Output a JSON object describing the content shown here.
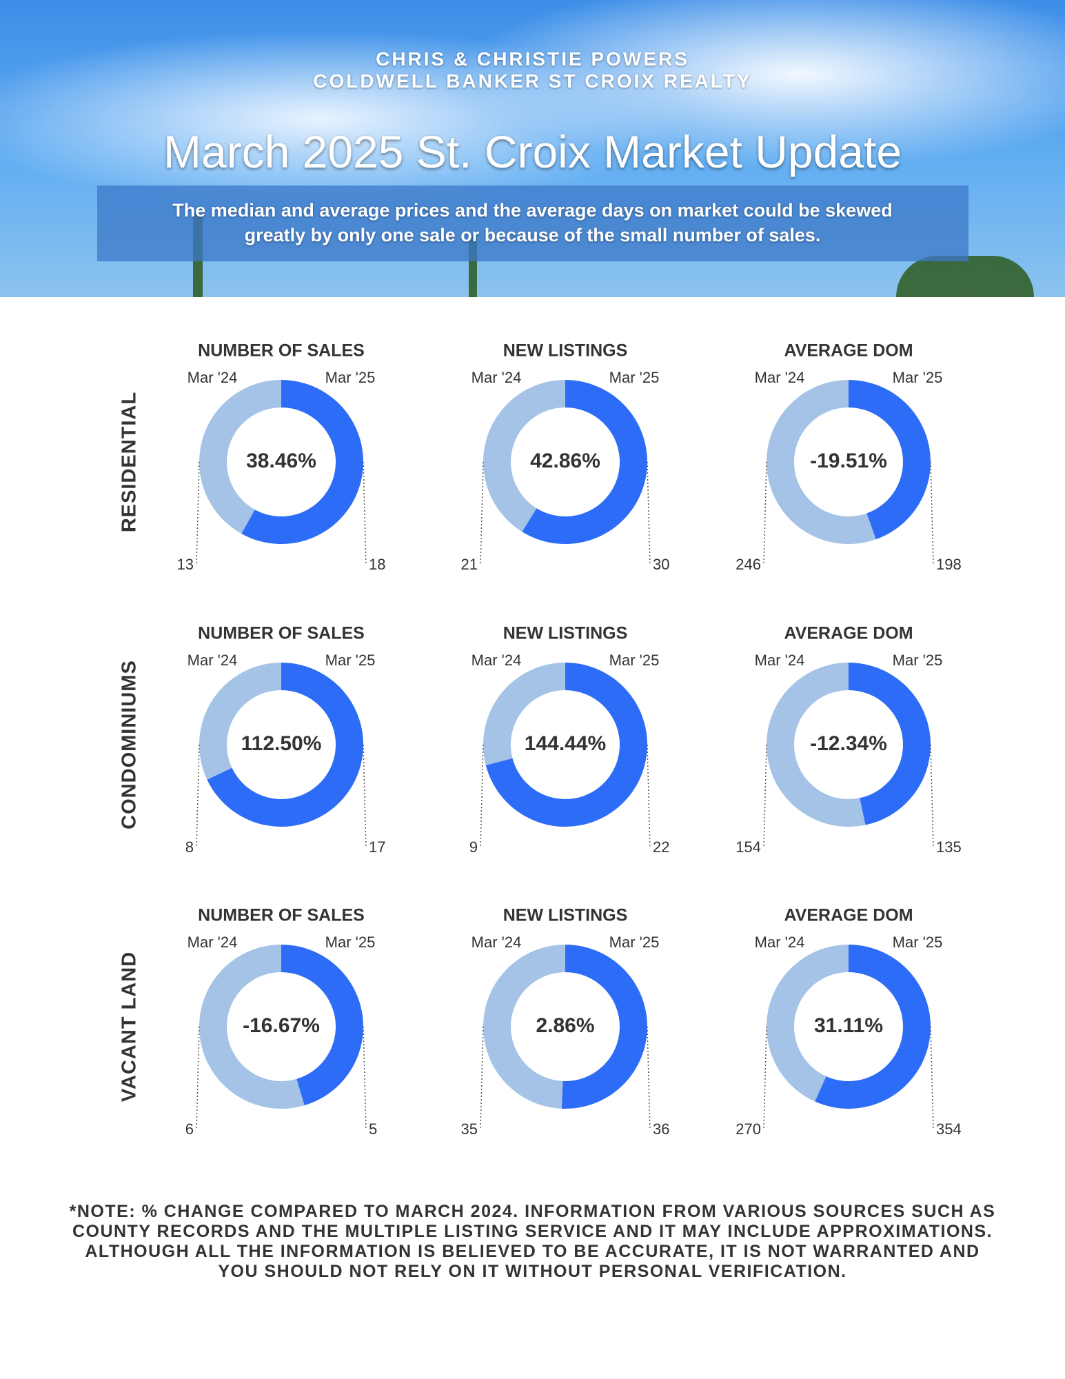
{
  "header": {
    "agents": "CHRIS & CHRISTIE POWERS",
    "brokerage": "COLDWELL BANKER ST CROIX REALTY",
    "title": "March 2025 St. Croix Market Update",
    "subtitle": "The median and average prices and  the average days on market could be skewed greatly by only one sale or because of the small number of sales."
  },
  "sections": [
    "RESIDENTIAL",
    "CONDOMINIUMS",
    "VACANT LAND"
  ],
  "chart_data": [
    {
      "type": "donut",
      "title": "NUMBER OF SALES",
      "categories": [
        "Mar '24",
        "Mar '25"
      ],
      "values": [
        13,
        18
      ],
      "center_label": "38.46%",
      "colors": [
        "#a4c3e6",
        "#2d6cf6"
      ]
    },
    {
      "type": "donut",
      "title": "NEW LISTINGS",
      "categories": [
        "Mar '24",
        "Mar '25"
      ],
      "values": [
        21,
        30
      ],
      "center_label": "42.86%",
      "colors": [
        "#a4c3e6",
        "#2d6cf6"
      ]
    },
    {
      "type": "donut",
      "title": "AVERAGE DOM",
      "categories": [
        "Mar '24",
        "Mar '25"
      ],
      "values": [
        246,
        198
      ],
      "center_label": "-19.51%",
      "colors": [
        "#a4c3e6",
        "#2d6cf6"
      ]
    },
    {
      "type": "donut",
      "title": "NUMBER OF SALES",
      "categories": [
        "Mar '24",
        "Mar '25"
      ],
      "values": [
        8,
        17
      ],
      "center_label": "112.50%",
      "colors": [
        "#a4c3e6",
        "#2d6cf6"
      ]
    },
    {
      "type": "donut",
      "title": "NEW LISTINGS",
      "categories": [
        "Mar '24",
        "Mar '25"
      ],
      "values": [
        9,
        22
      ],
      "center_label": "144.44%",
      "colors": [
        "#a4c3e6",
        "#2d6cf6"
      ]
    },
    {
      "type": "donut",
      "title": "AVERAGE DOM",
      "categories": [
        "Mar '24",
        "Mar '25"
      ],
      "values": [
        154,
        135
      ],
      "center_label": "-12.34%",
      "colors": [
        "#a4c3e6",
        "#2d6cf6"
      ]
    },
    {
      "type": "donut",
      "title": "NUMBER OF SALES",
      "categories": [
        "Mar '24",
        "Mar '25"
      ],
      "values": [
        6,
        5
      ],
      "center_label": "-16.67%",
      "colors": [
        "#a4c3e6",
        "#2d6cf6"
      ]
    },
    {
      "type": "donut",
      "title": "NEW LISTINGS",
      "categories": [
        "Mar '24",
        "Mar '25"
      ],
      "values": [
        35,
        36
      ],
      "center_label": "2.86%",
      "colors": [
        "#a4c3e6",
        "#2d6cf6"
      ]
    },
    {
      "type": "donut",
      "title": "AVERAGE DOM",
      "categories": [
        "Mar '24",
        "Mar '25"
      ],
      "values": [
        270,
        354
      ],
      "center_label": "31.11%",
      "colors": [
        "#a4c3e6",
        "#2d6cf6"
      ]
    }
  ],
  "note": "*NOTE: % CHANGE COMPARED TO MARCH 2024. INFORMATION FROM VARIOUS SOURCES SUCH AS COUNTY RECORDS AND THE MULTIPLE LISTING SERVICE AND IT MAY INCLUDE APPROXIMATIONS. ALTHOUGH ALL THE INFORMATION IS BELIEVED TO BE ACCURATE, IT IS NOT WARRANTED AND YOU SHOULD NOT RELY ON IT WITHOUT PERSONAL VERIFICATION."
}
